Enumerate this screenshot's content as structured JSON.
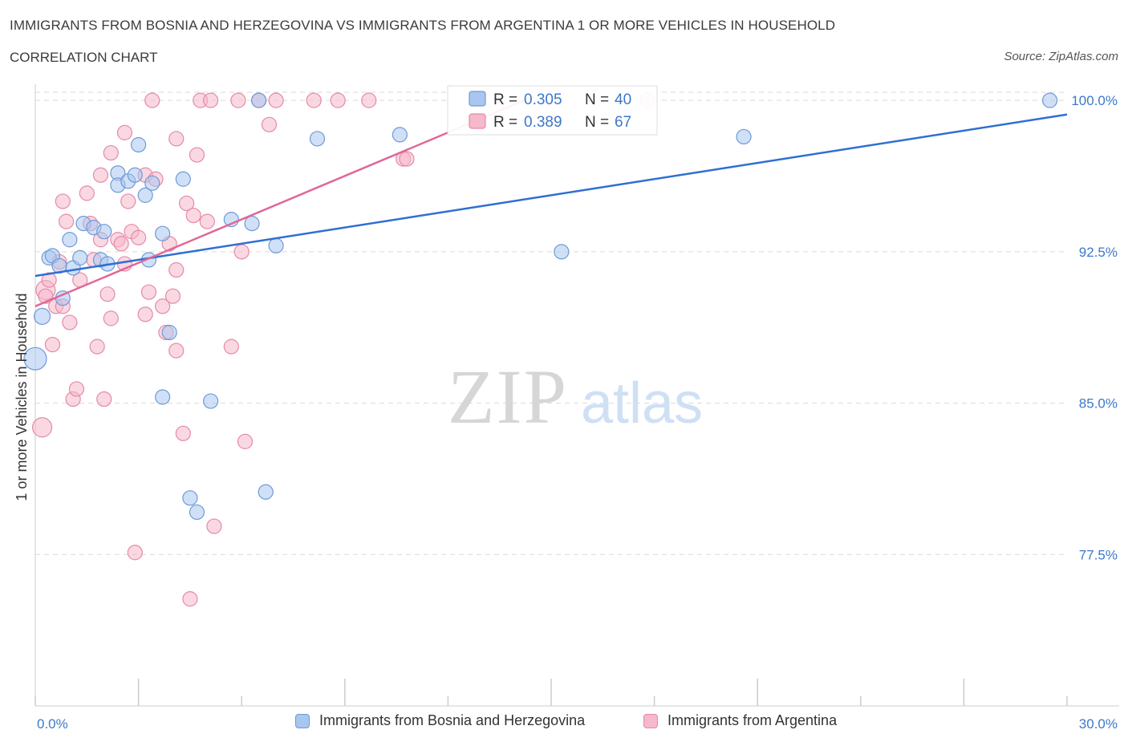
{
  "title": "IMMIGRANTS FROM BOSNIA AND HERZEGOVINA VS IMMIGRANTS FROM ARGENTINA 1 OR MORE VEHICLES IN HOUSEHOLD",
  "subtitle": "CORRELATION CHART",
  "source": "Source: ZipAtlas.com",
  "watermark": {
    "zip": "ZIP",
    "atlas": "atlas"
  },
  "colors": {
    "blue_fill": "#a9c6f0",
    "blue_stroke": "#6f9ad6",
    "blue_line": "#2f6fd1",
    "pink_fill": "#f6b8cb",
    "pink_stroke": "#e58aa8",
    "pink_line": "#e0679a",
    "axis_label": "#3d78c9",
    "grid": "#d9d9d9"
  },
  "chart_data": {
    "type": "scatter",
    "xlabel": "",
    "ylabel": "1 or more Vehicles in Household",
    "xlim": [
      0,
      30
    ],
    "ylim": [
      70,
      100.8
    ],
    "x_tick_labels": [
      "0.0%",
      "30.0%"
    ],
    "y_ticks": [
      77.5,
      85.0,
      92.5,
      100.0
    ],
    "y_tick_labels": [
      "77.5%",
      "85.0%",
      "92.5%",
      "100.0%"
    ],
    "grid": true,
    "legend_position": "top-center",
    "series": [
      {
        "name": "Immigrants from Bosnia and Herzegovina",
        "color": "blue",
        "R": "0.305",
        "N": "40",
        "R_label": "R = ",
        "N_label": "N = ",
        "trend": [
          [
            0,
            91.3
          ],
          [
            30,
            99.3
          ]
        ],
        "points": [
          [
            0.0,
            87.2,
            14
          ],
          [
            0.2,
            89.3,
            10
          ],
          [
            0.4,
            92.2,
            9
          ],
          [
            0.5,
            92.3,
            9
          ],
          [
            0.7,
            91.8,
            9
          ],
          [
            0.8,
            90.2,
            9
          ],
          [
            1.0,
            93.1,
            9
          ],
          [
            1.1,
            91.7,
            9
          ],
          [
            1.3,
            92.2,
            9
          ],
          [
            1.4,
            93.9,
            9
          ],
          [
            1.7,
            93.7,
            9
          ],
          [
            1.9,
            92.1,
            9
          ],
          [
            2.0,
            93.5,
            9
          ],
          [
            2.1,
            91.9,
            9
          ],
          [
            2.4,
            96.4,
            9
          ],
          [
            2.4,
            95.8,
            9
          ],
          [
            2.7,
            96.0,
            9
          ],
          [
            2.9,
            96.3,
            9
          ],
          [
            3.0,
            97.8,
            9
          ],
          [
            3.2,
            95.3,
            9
          ],
          [
            3.3,
            92.1,
            9
          ],
          [
            3.4,
            95.9,
            9
          ],
          [
            3.7,
            85.3,
            9
          ],
          [
            3.7,
            93.4,
            9
          ],
          [
            3.9,
            88.5,
            9
          ],
          [
            4.3,
            96.1,
            9
          ],
          [
            4.5,
            80.3,
            9
          ],
          [
            4.7,
            79.6,
            9
          ],
          [
            5.1,
            85.1,
            9
          ],
          [
            5.7,
            94.1,
            9
          ],
          [
            6.3,
            93.9,
            9
          ],
          [
            6.5,
            100.0,
            9
          ],
          [
            6.7,
            80.6,
            9
          ],
          [
            7.0,
            92.8,
            9
          ],
          [
            8.2,
            98.1,
            9
          ],
          [
            10.6,
            98.3,
            9
          ],
          [
            15.3,
            92.5,
            9
          ],
          [
            20.6,
            98.2,
            9
          ],
          [
            29.5,
            100.0,
            9
          ]
        ]
      },
      {
        "name": "Immigrants from Argentina",
        "color": "pink",
        "R": "0.389",
        "N": "67",
        "R_label": "R = ",
        "N_label": "N = ",
        "trend": [
          [
            0,
            89.8
          ],
          [
            14.5,
            100.2
          ]
        ],
        "points": [
          [
            0.2,
            83.8,
            12
          ],
          [
            0.3,
            90.6,
            12
          ],
          [
            0.3,
            90.3,
            9
          ],
          [
            0.4,
            91.1,
            9
          ],
          [
            0.5,
            87.9,
            9
          ],
          [
            0.6,
            89.8,
            9
          ],
          [
            0.7,
            92.0,
            9
          ],
          [
            0.8,
            89.8,
            9
          ],
          [
            0.8,
            95.0,
            9
          ],
          [
            0.9,
            94.0,
            9
          ],
          [
            1.0,
            89.0,
            9
          ],
          [
            1.1,
            85.2,
            9
          ],
          [
            1.2,
            85.7,
            9
          ],
          [
            1.3,
            91.1,
            9
          ],
          [
            1.5,
            95.4,
            9
          ],
          [
            1.6,
            93.9,
            9
          ],
          [
            1.7,
            92.1,
            9
          ],
          [
            1.8,
            87.8,
            9
          ],
          [
            1.9,
            93.1,
            9
          ],
          [
            1.9,
            96.3,
            9
          ],
          [
            2.0,
            85.2,
            9
          ],
          [
            2.1,
            90.4,
            9
          ],
          [
            2.2,
            89.2,
            9
          ],
          [
            2.2,
            97.4,
            9
          ],
          [
            2.4,
            93.1,
            9
          ],
          [
            2.5,
            92.9,
            9
          ],
          [
            2.6,
            91.9,
            9
          ],
          [
            2.6,
            98.4,
            9
          ],
          [
            2.7,
            95.0,
            9
          ],
          [
            2.8,
            93.5,
            9
          ],
          [
            2.9,
            77.6,
            9
          ],
          [
            3.0,
            93.2,
            9
          ],
          [
            3.2,
            96.3,
            9
          ],
          [
            3.2,
            89.4,
            9
          ],
          [
            3.3,
            90.5,
            9
          ],
          [
            3.4,
            100.0,
            9
          ],
          [
            3.5,
            96.1,
            9
          ],
          [
            3.7,
            89.8,
            9
          ],
          [
            3.8,
            88.5,
            9
          ],
          [
            3.9,
            92.9,
            9
          ],
          [
            4.0,
            90.3,
            9
          ],
          [
            4.1,
            87.6,
            9
          ],
          [
            4.1,
            91.6,
            9
          ],
          [
            4.1,
            98.1,
            9
          ],
          [
            4.3,
            83.5,
            9
          ],
          [
            4.4,
            94.9,
            9
          ],
          [
            4.5,
            75.3,
            9
          ],
          [
            4.6,
            94.3,
            9
          ],
          [
            4.7,
            97.3,
            9
          ],
          [
            4.8,
            100.0,
            9
          ],
          [
            5.0,
            94.0,
            9
          ],
          [
            5.1,
            100.0,
            9
          ],
          [
            5.2,
            78.9,
            9
          ],
          [
            5.7,
            87.8,
            9
          ],
          [
            5.9,
            100.0,
            9
          ],
          [
            6.0,
            92.5,
            9
          ],
          [
            6.1,
            83.1,
            9
          ],
          [
            6.5,
            100.0,
            9
          ],
          [
            6.8,
            98.8,
            9
          ],
          [
            7.0,
            100.0,
            9
          ],
          [
            8.1,
            100.0,
            9
          ],
          [
            8.8,
            100.0,
            9
          ],
          [
            9.7,
            100.0,
            9
          ],
          [
            10.7,
            97.1,
            9
          ],
          [
            10.8,
            97.1,
            9
          ],
          [
            17.8,
            100.0,
            9
          ]
        ]
      }
    ]
  }
}
